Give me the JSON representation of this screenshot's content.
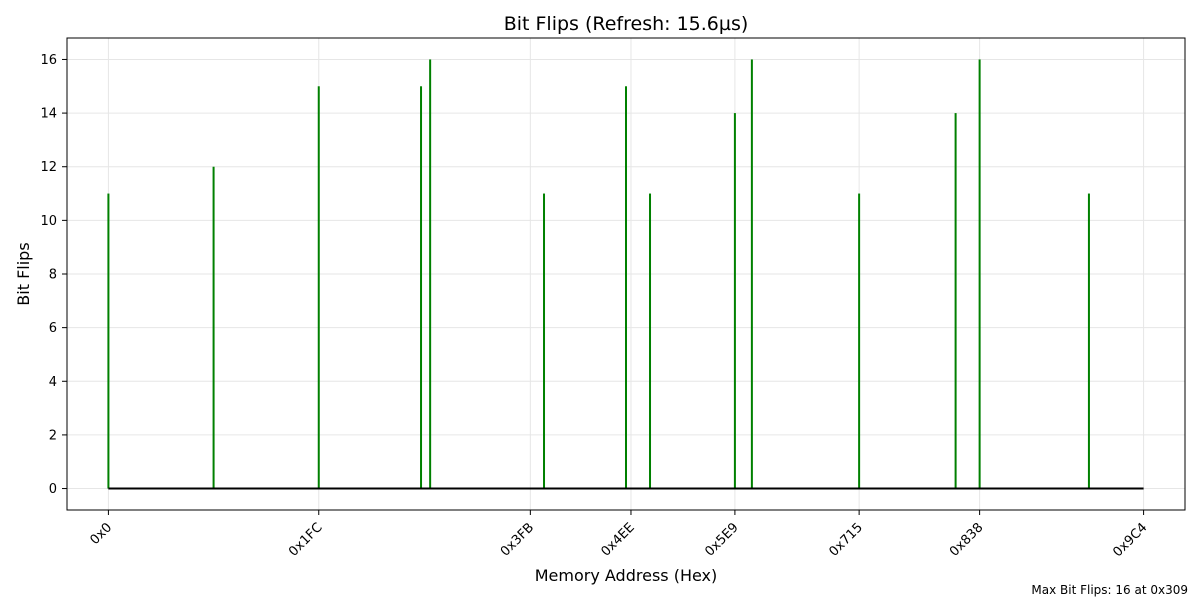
{
  "chart_data": {
    "type": "bar",
    "title": "Bit Flips (Refresh: 15.6µs)",
    "xlabel": "Memory Address (Hex)",
    "ylabel": "Bit Flips",
    "xlim": [
      -100,
      2600
    ],
    "ylim": [
      -0.8,
      16.8
    ],
    "y_ticks": [
      0,
      2,
      4,
      6,
      8,
      10,
      12,
      14,
      16
    ],
    "x_ticks": [
      {
        "value": 0,
        "label": "0x0"
      },
      {
        "value": 508,
        "label": "0x1FC"
      },
      {
        "value": 1019,
        "label": "0x3FB"
      },
      {
        "value": 1262,
        "label": "0x4EE"
      },
      {
        "value": 1513,
        "label": "0x5E9"
      },
      {
        "value": 1813,
        "label": "0x715"
      },
      {
        "value": 2104,
        "label": "0x838"
      },
      {
        "value": 2500,
        "label": "0x9C4"
      }
    ],
    "series": [
      {
        "color": "#008000",
        "points": [
          {
            "x": 0,
            "y": 11
          },
          {
            "x": 254,
            "y": 12
          },
          {
            "x": 508,
            "y": 15
          },
          {
            "x": 755,
            "y": 15
          },
          {
            "x": 777,
            "y": 16
          },
          {
            "x": 1052,
            "y": 11
          },
          {
            "x": 1250,
            "y": 15
          },
          {
            "x": 1308,
            "y": 11
          },
          {
            "x": 1513,
            "y": 14
          },
          {
            "x": 1554,
            "y": 16
          },
          {
            "x": 1813,
            "y": 11
          },
          {
            "x": 2046,
            "y": 14
          },
          {
            "x": 2104,
            "y": 16
          },
          {
            "x": 2368,
            "y": 11
          }
        ]
      }
    ],
    "baseline": {
      "y": 0,
      "from": 0,
      "to": 2500,
      "color": "#000000"
    },
    "grid": true,
    "annotation": "Max Bit Flips: 16 at 0x309"
  }
}
